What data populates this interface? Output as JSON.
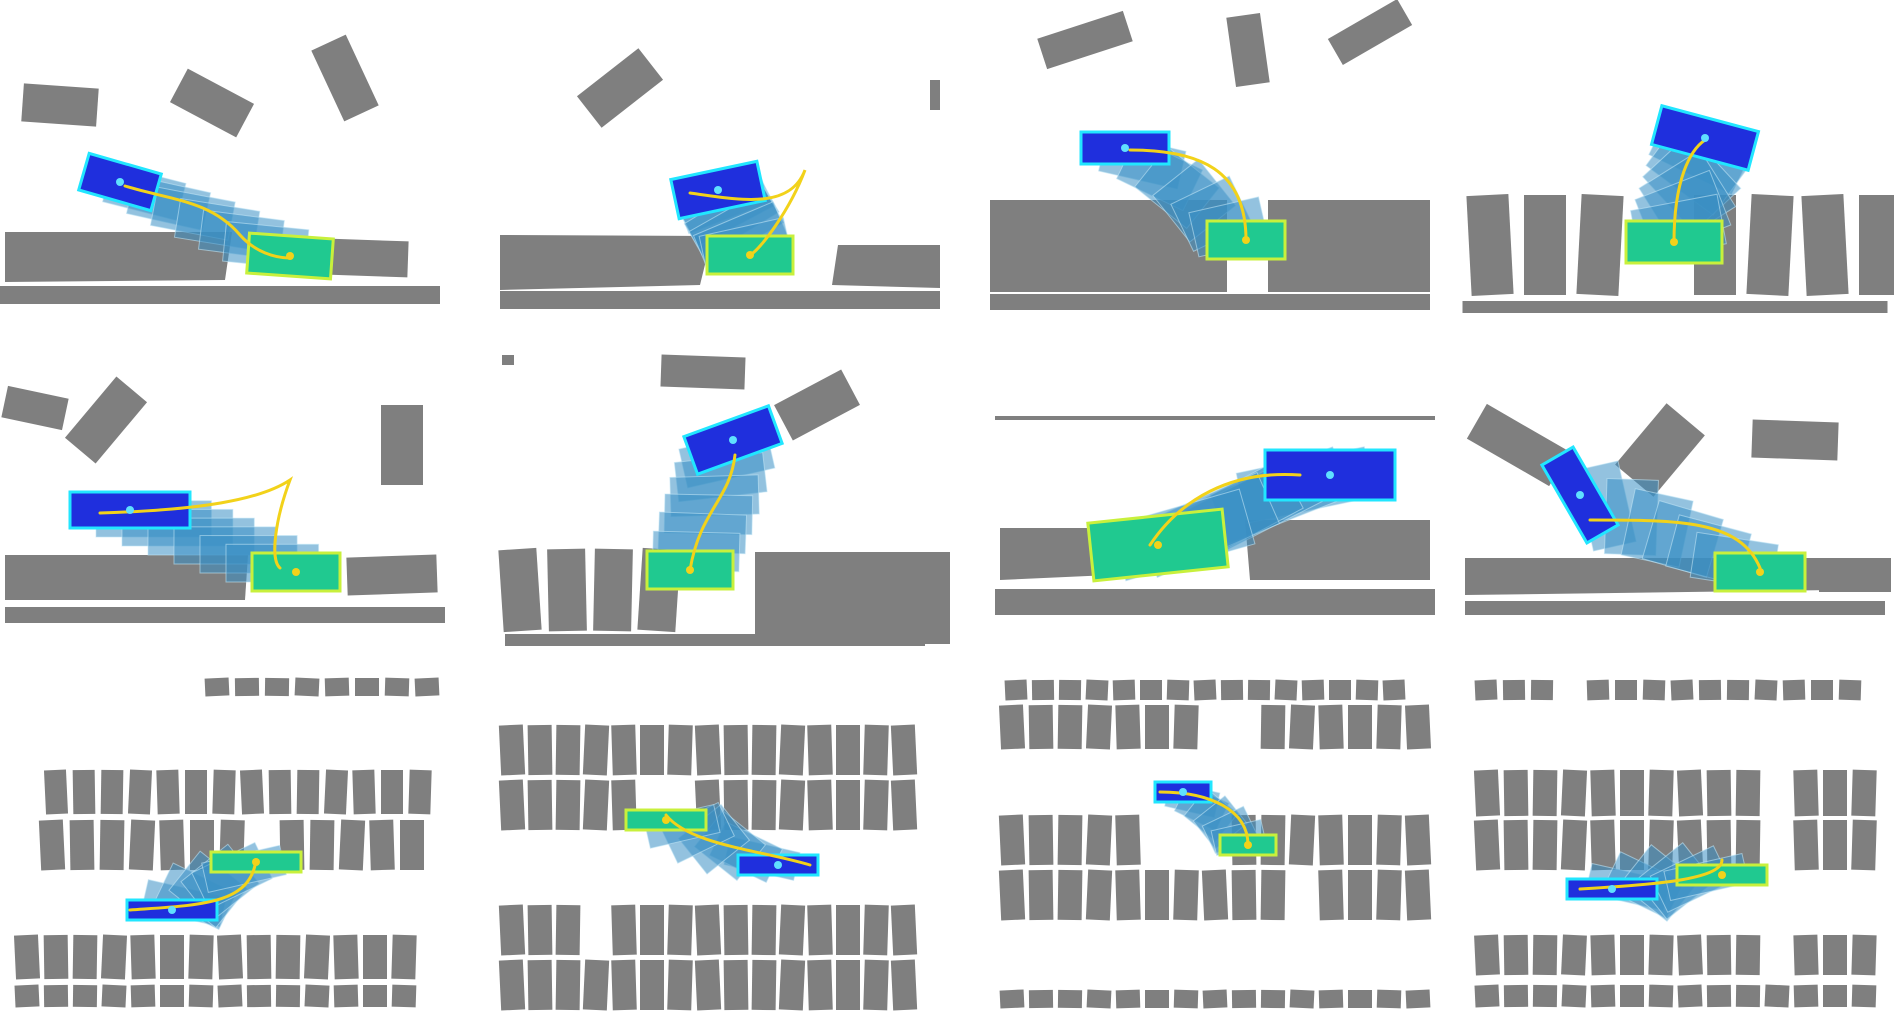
{
  "colors": {
    "obstacle": "#7f7f7f",
    "start_fill": "#1f2fdd",
    "start_edge": "#22e6ff",
    "goal_fill": "#20c990",
    "goal_edge": "#c8f03c",
    "trail_fill": "#3b8fc4",
    "trajectory": "#f2d21a",
    "arrow": "#5fe0ff"
  },
  "scenarios": [
    {
      "id": "parallel-left",
      "type": "parallel-parking"
    },
    {
      "id": "parallel-right-curb",
      "type": "parallel-parking"
    },
    {
      "id": "perpendicular-gap",
      "type": "perpendicular-parking"
    },
    {
      "id": "perpendicular-row",
      "type": "perpendicular-parking"
    },
    {
      "id": "parallel-long",
      "type": "parallel-parking"
    },
    {
      "id": "perpendicular-reverse",
      "type": "perpendicular-parking"
    },
    {
      "id": "parallel-corridor",
      "type": "parallel-parking"
    },
    {
      "id": "parallel-tight",
      "type": "parallel-parking"
    },
    {
      "id": "lot-right-turn",
      "type": "parking-lot"
    },
    {
      "id": "lot-left-exit",
      "type": "parking-lot"
    },
    {
      "id": "lot-top-turn",
      "type": "parking-lot"
    },
    {
      "id": "lot-reverse-turn",
      "type": "parking-lot"
    }
  ]
}
